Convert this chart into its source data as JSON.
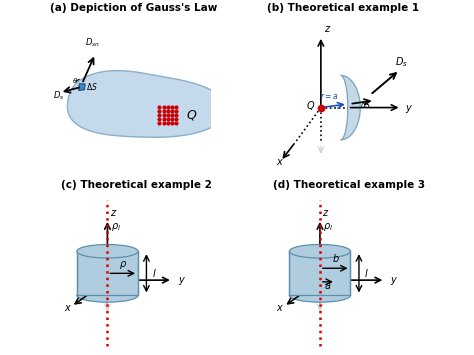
{
  "title_a": "(a) Depiction of Gauss's Law",
  "title_b": "(b) Theoretical example 1",
  "title_c": "(c) Theoretical example 2",
  "title_d": "(d) Theoretical example 3",
  "bg_color": "#ffffff",
  "blob_color": "#c5d9ed",
  "blob_edge_color": "#8aafc8",
  "surface_color": "#3a8ac4",
  "cylinder_color": "#b0ccdf",
  "cylinder_edge": "#5c8faa",
  "charge_color": "#cc0000",
  "red_line_color": "#dd0000",
  "title_fontsize": 7.5,
  "label_fontsize": 7
}
